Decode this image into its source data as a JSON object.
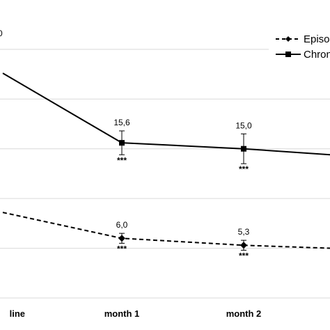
{
  "chart_data": {
    "type": "line",
    "title": "",
    "xlabel": "",
    "ylabel": "",
    "grid": true,
    "legend_position": "top-right",
    "categories": [
      "line",
      "month 1",
      "month 2",
      ""
    ],
    "series": [
      {
        "name": "Episo",
        "line_style": "dashed",
        "marker": "diamond",
        "values": [
          8.6,
          6.0,
          5.3,
          5.0
        ],
        "errors": [
          null,
          0.5,
          0.5,
          null
        ],
        "data_labels": [
          null,
          "6,0",
          "5,3",
          null
        ],
        "significance": [
          null,
          "***",
          "***",
          null
        ]
      },
      {
        "name": "Chron",
        "line_style": "solid",
        "marker": "square",
        "values": [
          22.6,
          15.6,
          15.0,
          14.4
        ],
        "errors": [
          null,
          1.2,
          1.5,
          null
        ],
        "data_labels": [
          null,
          "15,6",
          "15,0",
          null
        ],
        "significance": [
          null,
          "***",
          "***",
          null
        ]
      }
    ],
    "cut_label_top_left": "0",
    "ylim": [
      0,
      28
    ],
    "y_grid_values": [
      5,
      10,
      15,
      20,
      25
    ],
    "colors": {
      "line": "#000000",
      "grid": "#d9d9d9"
    }
  }
}
